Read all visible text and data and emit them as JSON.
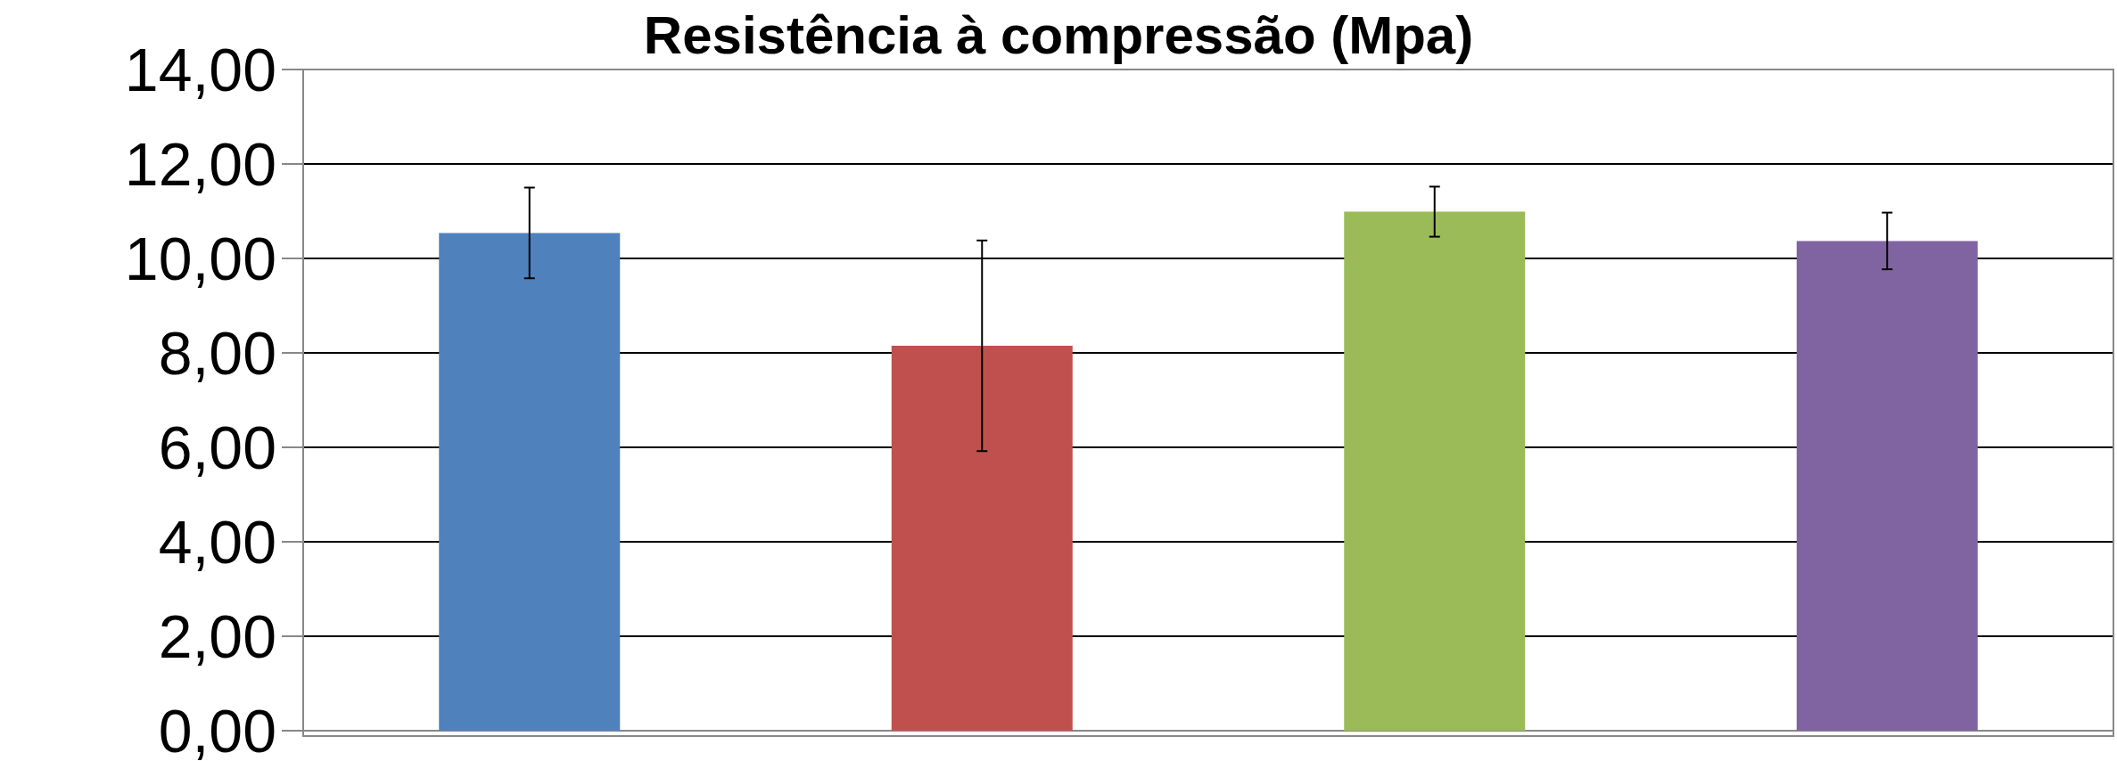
{
  "chart_data": {
    "type": "bar",
    "title": "Resistência à compressão (Mpa)",
    "categories": [
      null,
      null,
      null,
      null
    ],
    "values": [
      10.54,
      8.15,
      10.99,
      10.37
    ],
    "errors": [
      0.96,
      2.23,
      0.53,
      0.6
    ],
    "colors": [
      "#4f81bd",
      "#c0504d",
      "#9bbb59",
      "#8064a2"
    ],
    "ylim": [
      0,
      14
    ],
    "yticks": [
      {
        "value": 0,
        "label": "0,00"
      },
      {
        "value": 2,
        "label": "2,00"
      },
      {
        "value": 4,
        "label": "4,00"
      },
      {
        "value": 6,
        "label": "6,00"
      },
      {
        "value": 8,
        "label": "8,00"
      },
      {
        "value": 10,
        "label": "10,00"
      },
      {
        "value": 12,
        "label": "12,00"
      },
      {
        "value": 14,
        "label": "14,00"
      }
    ],
    "grid": "y"
  }
}
